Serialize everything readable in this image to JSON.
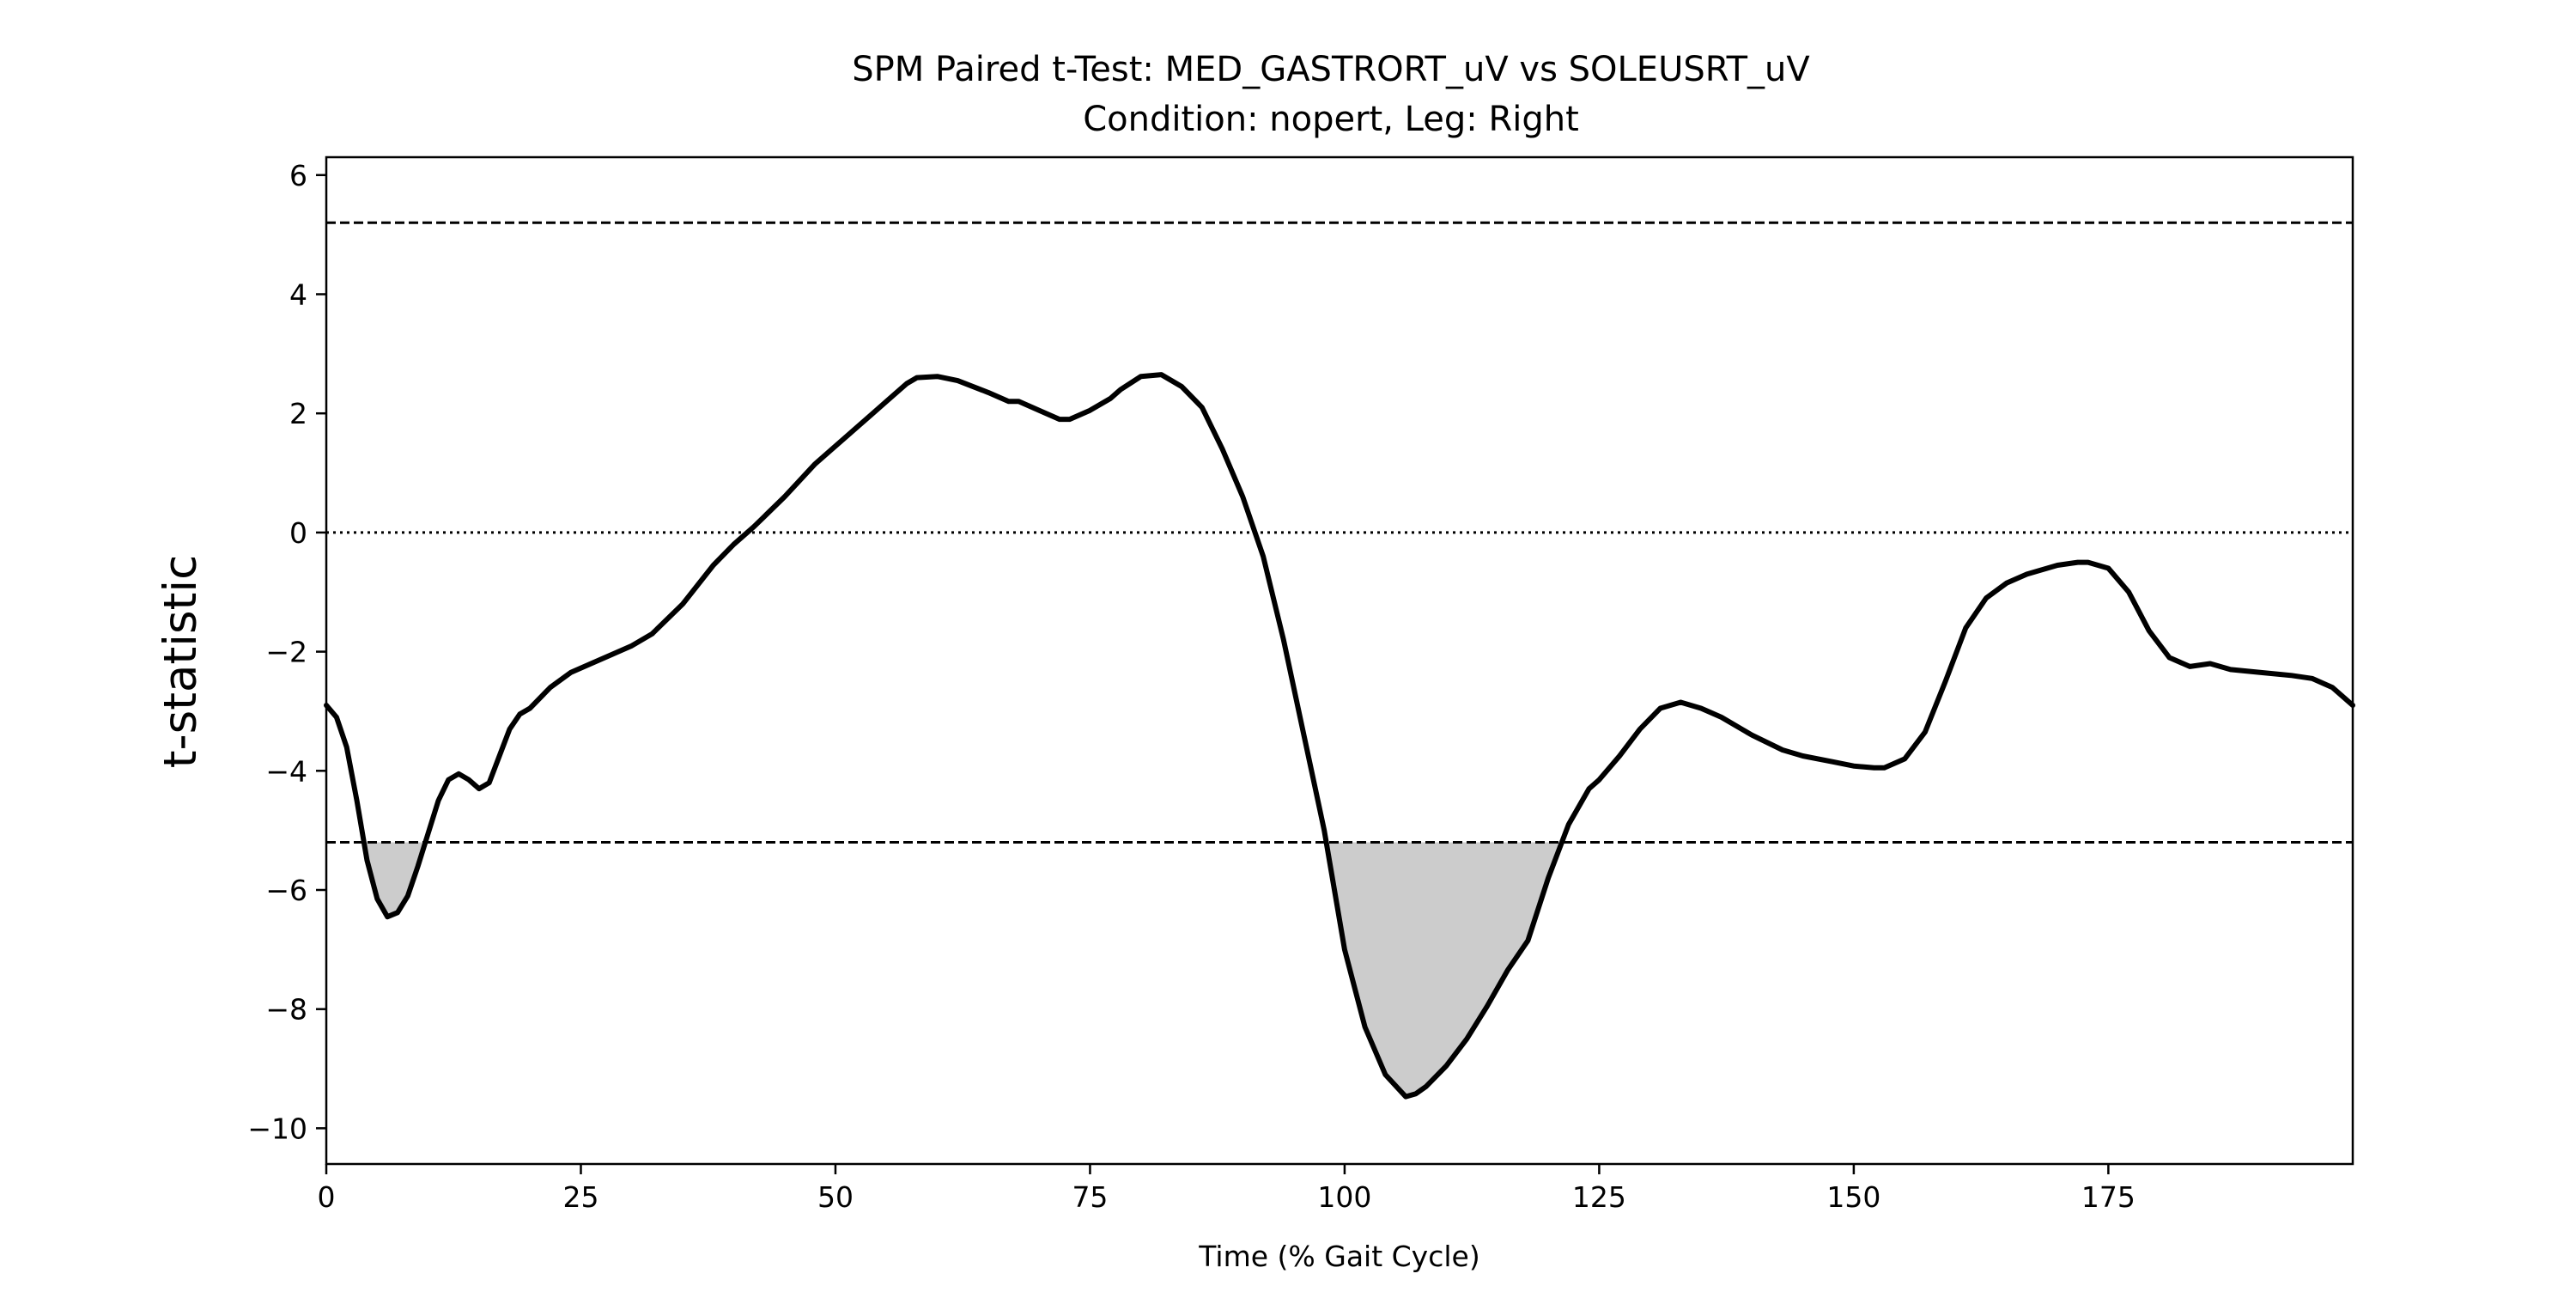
{
  "chart_data": {
    "type": "line",
    "title": "SPM Paired t-Test: MED_GASTRORT_uV vs SOLEUSRT_uV",
    "subtitle": "Condition: nopert, Leg: Right",
    "xlabel": "Time (% Gait Cycle)",
    "ylabel": "t-statistic",
    "xlim": [
      0,
      199
    ],
    "ylim": [
      -10.6,
      6.3
    ],
    "xticks": [
      0,
      25,
      50,
      75,
      100,
      125,
      150,
      175
    ],
    "xtick_labels": [
      "0",
      "25",
      "50",
      "75",
      "100",
      "125",
      "150",
      "175"
    ],
    "yticks": [
      6,
      4,
      2,
      0,
      -2,
      -4,
      -6,
      -8,
      -10
    ],
    "ytick_labels": [
      "6",
      "4",
      "2",
      "0",
      "−2",
      "−4",
      "−6",
      "−8",
      "−10"
    ],
    "grid": false,
    "threshold": 5.2,
    "zero_line": 0,
    "colors": {
      "line": "#000000",
      "fill": "#cccccc",
      "threshold_line": "#000000",
      "zero_line": "#000000"
    },
    "series": [
      {
        "x": [
          0,
          1,
          2,
          3,
          4,
          5,
          6,
          7,
          8,
          9,
          10,
          11,
          12,
          13,
          14,
          15,
          16,
          17,
          18,
          19,
          20,
          22,
          24,
          26,
          28,
          30,
          32,
          35,
          38,
          40,
          42,
          45,
          48,
          50,
          52,
          55,
          57,
          58,
          60,
          62,
          65,
          67,
          68,
          70,
          72,
          73,
          75,
          77,
          78,
          80,
          82,
          84,
          86,
          88,
          90,
          92,
          94,
          96,
          98,
          100,
          102,
          104,
          106,
          107,
          108,
          110,
          112,
          114,
          116,
          117,
          118,
          120,
          122,
          124,
          125,
          127,
          129,
          131,
          133,
          135,
          137,
          140,
          143,
          145,
          148,
          150,
          152,
          153,
          155,
          157,
          159,
          161,
          163,
          165,
          167,
          170,
          172,
          173,
          175,
          177,
          179,
          181,
          183,
          185,
          187,
          190,
          193,
          195,
          197,
          199
        ],
        "y": [
          -2.9,
          -3.1,
          -3.6,
          -4.5,
          -5.5,
          -6.15,
          -6.45,
          -6.38,
          -6.1,
          -5.6,
          -5.05,
          -4.5,
          -4.15,
          -4.05,
          -4.15,
          -4.3,
          -4.2,
          -3.75,
          -3.3,
          -3.05,
          -2.95,
          -2.6,
          -2.35,
          -2.2,
          -2.05,
          -1.9,
          -1.7,
          -1.2,
          -0.55,
          -0.2,
          0.1,
          0.6,
          1.15,
          1.45,
          1.75,
          2.2,
          2.5,
          2.6,
          2.62,
          2.55,
          2.35,
          2.2,
          2.2,
          2.05,
          1.9,
          1.9,
          2.05,
          2.25,
          2.4,
          2.62,
          2.65,
          2.45,
          2.1,
          1.4,
          0.6,
          -0.4,
          -1.8,
          -3.4,
          -5.0,
          -7.0,
          -8.3,
          -9.1,
          -9.47,
          -9.42,
          -9.3,
          -8.95,
          -8.5,
          -7.95,
          -7.35,
          -7.1,
          -6.85,
          -5.8,
          -4.9,
          -4.3,
          -4.15,
          -3.75,
          -3.3,
          -2.95,
          -2.85,
          -2.95,
          -3.1,
          -3.4,
          -3.65,
          -3.75,
          -3.85,
          -3.92,
          -3.95,
          -3.95,
          -3.8,
          -3.35,
          -2.5,
          -1.6,
          -1.1,
          -0.85,
          -0.7,
          -0.55,
          -0.5,
          -0.5,
          -0.6,
          -1.0,
          -1.65,
          -2.1,
          -2.25,
          -2.2,
          -2.3,
          -2.35,
          -2.4,
          -2.45,
          -2.6,
          -2.9
        ]
      }
    ]
  }
}
